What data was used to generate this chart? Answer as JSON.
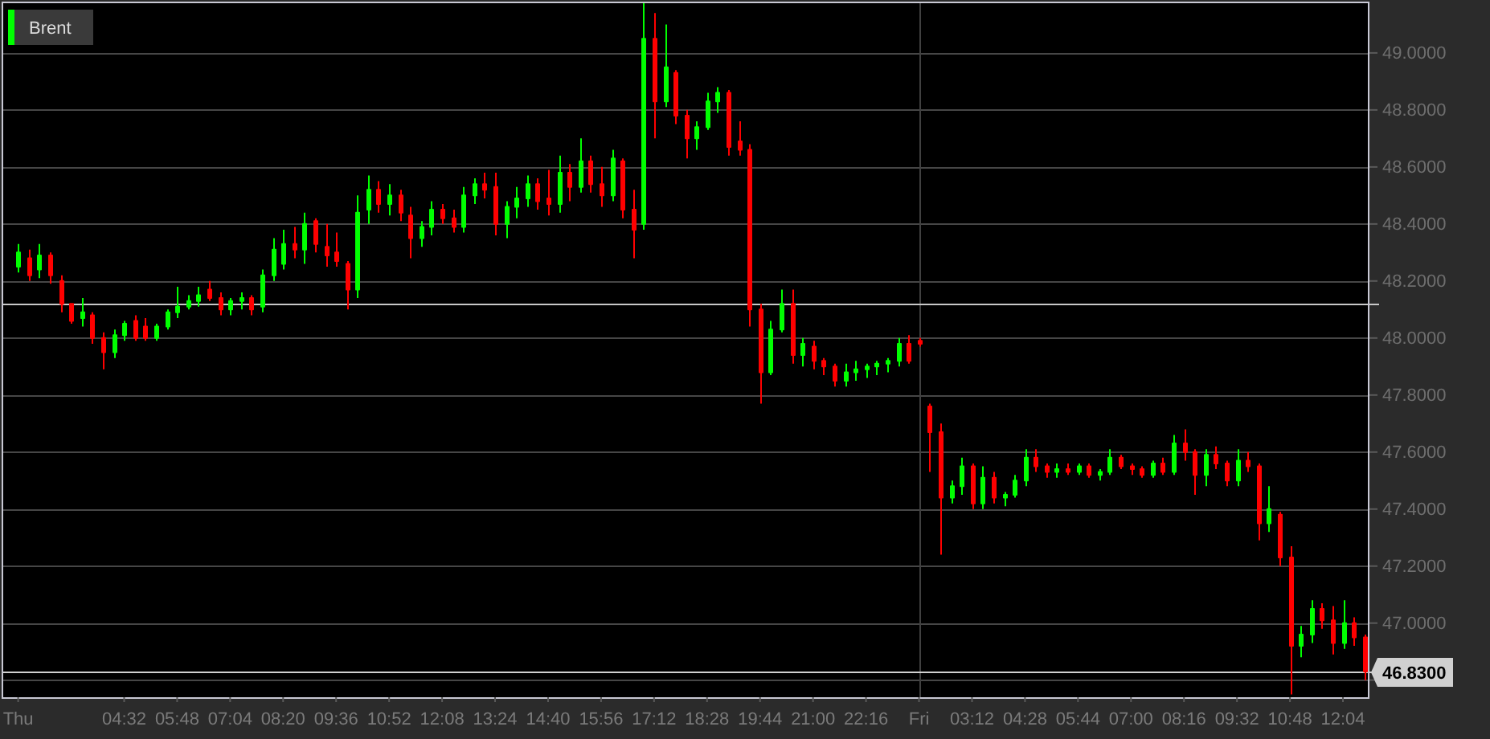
{
  "chart_data": {
    "type": "candlestick",
    "categories": [
      "Thu",
      null,
      null,
      null,
      null,
      null,
      null,
      null,
      null,
      null,
      "04:32",
      null,
      null,
      null,
      null,
      "05:48",
      null,
      null,
      null,
      null,
      "07:04",
      null,
      null,
      null,
      null,
      "08:20",
      null,
      null,
      null,
      null,
      "09:36",
      null,
      null,
      null,
      null,
      "10:52",
      null,
      null,
      null,
      null,
      "12:08",
      null,
      null,
      null,
      null,
      "13:24",
      null,
      null,
      null,
      null,
      "14:40",
      null,
      null,
      null,
      null,
      "15:56",
      null,
      null,
      null,
      null,
      "17:12",
      null,
      null,
      null,
      null,
      "18:28",
      null,
      null,
      null,
      null,
      "19:44",
      null,
      null,
      null,
      null,
      "21:00",
      null,
      null,
      null,
      null,
      "22:16",
      null,
      null,
      null,
      null,
      "Fri",
      null,
      null,
      null,
      null,
      "03:12",
      null,
      null,
      null,
      null,
      "04:28",
      null,
      null,
      null,
      null,
      "05:44",
      null,
      null,
      null,
      null,
      "07:00",
      null,
      null,
      null,
      null,
      "08:16",
      null,
      null,
      null,
      null,
      "09:32",
      null,
      null,
      null,
      null,
      "10:48",
      null,
      null,
      null,
      null,
      "12:04",
      null,
      null
    ],
    "series": [
      {
        "name": "Brent",
        "color": "#00ff00",
        "ohlc": [
          [
            48.25,
            48.33,
            48.23,
            48.3
          ],
          [
            48.28,
            48.31,
            48.2,
            48.22
          ],
          [
            48.24,
            48.33,
            48.21,
            48.29
          ],
          [
            48.29,
            48.3,
            48.19,
            48.22
          ],
          [
            48.2,
            48.22,
            48.09,
            48.12
          ],
          [
            48.12,
            48.12,
            48.05,
            48.06
          ],
          [
            48.07,
            48.14,
            48.04,
            48.09
          ],
          [
            48.08,
            48.09,
            47.98,
            48.0
          ],
          [
            48.0,
            48.02,
            47.89,
            47.95
          ],
          [
            47.95,
            48.03,
            47.93,
            48.01
          ],
          [
            48.01,
            48.06,
            47.99,
            48.05
          ],
          [
            48.06,
            48.08,
            47.99,
            48.0
          ],
          [
            48.04,
            48.07,
            47.99,
            48.0
          ],
          [
            48.0,
            48.05,
            47.99,
            48.04
          ],
          [
            48.04,
            48.1,
            48.03,
            48.09
          ],
          [
            48.09,
            48.18,
            48.07,
            48.11
          ],
          [
            48.11,
            48.15,
            48.1,
            48.13
          ],
          [
            48.13,
            48.18,
            48.11,
            48.15
          ],
          [
            48.17,
            48.2,
            48.13,
            48.14
          ],
          [
            48.14,
            48.16,
            48.08,
            48.1
          ],
          [
            48.1,
            48.14,
            48.08,
            48.13
          ],
          [
            48.13,
            48.16,
            48.1,
            48.14
          ],
          [
            48.14,
            48.15,
            48.08,
            48.1
          ],
          [
            48.11,
            48.24,
            48.09,
            48.22
          ],
          [
            48.22,
            48.35,
            48.2,
            48.31
          ],
          [
            48.26,
            48.38,
            48.24,
            48.33
          ],
          [
            48.33,
            48.39,
            48.28,
            48.31
          ],
          [
            48.31,
            48.44,
            48.26,
            48.4
          ],
          [
            48.41,
            48.42,
            48.3,
            48.33
          ],
          [
            48.32,
            48.4,
            48.25,
            48.29
          ],
          [
            48.3,
            48.37,
            48.25,
            48.27
          ],
          [
            48.26,
            48.27,
            48.1,
            48.17
          ],
          [
            48.17,
            48.5,
            48.14,
            48.44
          ],
          [
            48.45,
            48.57,
            48.4,
            48.52
          ],
          [
            48.52,
            48.55,
            48.44,
            48.47
          ],
          [
            48.47,
            48.54,
            48.43,
            48.5
          ],
          [
            48.5,
            48.52,
            48.41,
            48.44
          ],
          [
            48.43,
            48.46,
            48.28,
            48.35
          ],
          [
            48.35,
            48.41,
            48.32,
            48.39
          ],
          [
            48.39,
            48.48,
            48.36,
            48.45
          ],
          [
            48.45,
            48.47,
            48.4,
            48.42
          ],
          [
            48.42,
            48.45,
            48.37,
            48.39
          ],
          [
            48.39,
            48.53,
            48.37,
            48.5
          ],
          [
            48.5,
            48.56,
            48.47,
            48.54
          ],
          [
            48.54,
            48.58,
            48.49,
            48.52
          ],
          [
            48.53,
            48.58,
            48.36,
            48.4
          ],
          [
            48.4,
            48.48,
            48.35,
            48.46
          ],
          [
            48.46,
            48.53,
            48.42,
            48.49
          ],
          [
            48.49,
            48.57,
            48.46,
            48.54
          ],
          [
            48.54,
            48.56,
            48.45,
            48.48
          ],
          [
            48.49,
            48.59,
            48.43,
            48.47
          ],
          [
            48.47,
            48.64,
            48.44,
            48.58
          ],
          [
            48.58,
            48.61,
            48.48,
            48.53
          ],
          [
            48.53,
            48.7,
            48.51,
            48.62
          ],
          [
            48.62,
            48.64,
            48.51,
            48.54
          ],
          [
            48.54,
            48.6,
            48.46,
            48.5
          ],
          [
            48.5,
            48.66,
            48.48,
            48.63
          ],
          [
            48.62,
            48.63,
            48.42,
            48.45
          ],
          [
            48.45,
            48.52,
            48.28,
            48.38
          ],
          [
            48.4,
            49.18,
            48.38,
            49.05
          ],
          [
            49.05,
            49.14,
            48.7,
            48.83
          ],
          [
            48.83,
            49.1,
            48.81,
            48.95
          ],
          [
            48.93,
            48.94,
            48.75,
            48.78
          ],
          [
            48.78,
            48.8,
            48.63,
            48.7
          ],
          [
            48.7,
            48.76,
            48.66,
            48.74
          ],
          [
            48.74,
            48.86,
            48.73,
            48.83
          ],
          [
            48.83,
            48.88,
            48.79,
            48.86
          ],
          [
            48.86,
            48.87,
            48.64,
            48.67
          ],
          [
            48.69,
            48.76,
            48.64,
            48.66
          ],
          [
            48.66,
            48.68,
            48.04,
            48.1
          ],
          [
            48.1,
            48.12,
            47.77,
            47.88
          ],
          [
            47.88,
            48.06,
            47.87,
            48.03
          ],
          [
            48.03,
            48.17,
            48.02,
            48.12
          ],
          [
            48.12,
            48.17,
            47.91,
            47.94
          ],
          [
            47.94,
            48.0,
            47.9,
            47.98
          ],
          [
            47.97,
            47.99,
            47.89,
            47.92
          ],
          [
            47.92,
            47.93,
            47.87,
            47.9
          ],
          [
            47.9,
            47.91,
            47.83,
            47.85
          ],
          [
            47.85,
            47.91,
            47.83,
            47.88
          ],
          [
            47.88,
            47.92,
            47.85,
            47.89
          ],
          [
            47.89,
            47.91,
            47.86,
            47.9
          ],
          [
            47.9,
            47.92,
            47.87,
            47.91
          ],
          [
            47.91,
            47.93,
            47.88,
            47.92
          ],
          [
            47.92,
            48.0,
            47.9,
            47.98
          ],
          [
            47.98,
            48.01,
            47.91,
            47.92
          ],
          [
            47.99,
            48.0,
            47.97,
            47.98
          ],
          [
            47.76,
            47.77,
            47.53,
            47.67
          ],
          [
            47.67,
            47.7,
            47.24,
            47.44
          ],
          [
            47.44,
            47.5,
            47.42,
            47.48
          ],
          [
            47.48,
            47.58,
            47.45,
            47.55
          ],
          [
            47.55,
            47.56,
            47.4,
            47.42
          ],
          [
            47.42,
            47.55,
            47.4,
            47.51
          ],
          [
            47.51,
            47.53,
            47.42,
            47.44
          ],
          [
            47.44,
            47.46,
            47.41,
            47.45
          ],
          [
            47.45,
            47.52,
            47.44,
            47.5
          ],
          [
            47.5,
            47.61,
            47.48,
            47.58
          ],
          [
            47.58,
            47.61,
            47.53,
            47.55
          ],
          [
            47.55,
            47.56,
            47.51,
            47.53
          ],
          [
            47.53,
            47.56,
            47.51,
            47.54
          ],
          [
            47.54,
            47.56,
            47.52,
            47.53
          ],
          [
            47.53,
            47.56,
            47.52,
            47.55
          ],
          [
            47.55,
            47.56,
            47.51,
            47.52
          ],
          [
            47.52,
            47.54,
            47.5,
            47.53
          ],
          [
            47.53,
            47.61,
            47.52,
            47.58
          ],
          [
            47.58,
            47.59,
            47.54,
            47.55
          ],
          [
            47.55,
            47.56,
            47.52,
            47.54
          ],
          [
            47.54,
            47.55,
            47.51,
            47.52
          ],
          [
            47.52,
            47.57,
            47.51,
            47.56
          ],
          [
            47.56,
            47.58,
            47.52,
            47.53
          ],
          [
            47.53,
            47.66,
            47.52,
            47.63
          ],
          [
            47.63,
            47.68,
            47.57,
            47.6
          ],
          [
            47.6,
            47.61,
            47.45,
            47.52
          ],
          [
            47.52,
            47.61,
            47.48,
            47.59
          ],
          [
            47.59,
            47.62,
            47.54,
            47.56
          ],
          [
            47.56,
            47.57,
            47.48,
            47.5
          ],
          [
            47.5,
            47.61,
            47.48,
            47.57
          ],
          [
            47.57,
            47.6,
            47.53,
            47.55
          ],
          [
            47.55,
            47.56,
            47.29,
            47.35
          ],
          [
            47.35,
            47.48,
            47.32,
            47.4
          ],
          [
            47.38,
            47.39,
            47.2,
            47.23
          ],
          [
            47.23,
            47.27,
            46.75,
            46.92
          ],
          [
            46.92,
            46.99,
            46.88,
            46.96
          ],
          [
            46.96,
            47.08,
            46.93,
            47.05
          ],
          [
            47.05,
            47.07,
            46.98,
            47.01
          ],
          [
            47.01,
            47.06,
            46.89,
            46.93
          ],
          [
            46.93,
            47.08,
            46.91,
            47.0
          ],
          [
            47.0,
            47.02,
            46.92,
            46.95
          ],
          [
            46.95,
            46.96,
            46.8,
            46.83
          ]
        ],
        "colors": [
          "#00ff00",
          "#ff0000",
          "#00ff00",
          "#ff0000",
          "#ff0000",
          "#ff0000",
          "#00ff00",
          "#ff0000",
          "#ff0000",
          "#00ff00",
          "#00ff00",
          "#ff0000",
          "#ff0000",
          "#00ff00",
          "#00ff00",
          "#00ff00",
          "#00ff00",
          "#00ff00",
          "#ff0000",
          "#ff0000",
          "#00ff00",
          "#00ff00",
          "#ff0000",
          "#00ff00",
          "#00ff00",
          "#00ff00",
          "#ff0000",
          "#00ff00",
          "#ff0000",
          "#ff0000",
          "#ff0000",
          "#ff0000",
          "#00ff00",
          "#00ff00",
          "#ff0000",
          "#00ff00",
          "#ff0000",
          "#ff0000",
          "#00ff00",
          "#00ff00",
          "#ff0000",
          "#ff0000",
          "#00ff00",
          "#00ff00",
          "#ff0000",
          "#ff0000",
          "#00ff00",
          "#00ff00",
          "#00ff00",
          "#ff0000",
          "#ff0000",
          "#00ff00",
          "#ff0000",
          "#00ff00",
          "#ff0000",
          "#ff0000",
          "#00ff00",
          "#ff0000",
          "#ff0000",
          "#00ff00",
          "#ff0000",
          "#00ff00",
          "#ff0000",
          "#ff0000",
          "#00ff00",
          "#00ff00",
          "#00ff00",
          "#ff0000",
          "#ff0000",
          "#ff0000",
          "#ff0000",
          "#00ff00",
          "#00ff00",
          "#ff0000",
          "#00ff00",
          "#ff0000",
          "#ff0000",
          "#ff0000",
          "#00ff00",
          "#00ff00",
          "#00ff00",
          "#00ff00",
          "#00ff00",
          "#00ff00",
          "#ff0000",
          "#ff0000",
          "#ff0000",
          "#ff0000",
          "#00ff00",
          "#00ff00",
          "#ff0000",
          "#00ff00",
          "#ff0000",
          "#00ff00",
          "#00ff00",
          "#00ff00",
          "#ff0000",
          "#ff0000",
          "#00ff00",
          "#ff0000",
          "#00ff00",
          "#ff0000",
          "#00ff00",
          "#00ff00",
          "#ff0000",
          "#ff0000",
          "#ff0000",
          "#00ff00",
          "#ff0000",
          "#00ff00",
          "#ff0000",
          "#ff0000",
          "#00ff00",
          "#ff0000",
          "#ff0000",
          "#00ff00",
          "#ff0000",
          "#ff0000",
          "#00ff00",
          "#ff0000",
          "#ff0000",
          "#00ff00",
          "#00ff00",
          "#ff0000",
          "#ff0000",
          "#00ff00",
          "#ff0000",
          "#ff0000"
        ]
      }
    ],
    "ylim": [
      46.74,
      49.18
    ],
    "yticks": [
      {
        "value": 46.8,
        "label": null
      },
      {
        "value": 47,
        "label": "47.0000"
      },
      {
        "value": 47.2,
        "label": "47.2000"
      },
      {
        "value": 47.4,
        "label": "47.4000"
      },
      {
        "value": 47.6,
        "label": "47.6000"
      },
      {
        "value": 47.8,
        "label": "47.8000"
      },
      {
        "value": 48,
        "label": "48.0000"
      },
      {
        "value": 48.2,
        "label": "48.2000"
      },
      {
        "value": 48.4,
        "label": "48.4000"
      },
      {
        "value": 48.6,
        "label": "48.6000"
      },
      {
        "value": 48.8,
        "label": "48.8000"
      },
      {
        "value": 49,
        "label": "49.0000"
      }
    ],
    "grid": "y",
    "legend": "top left",
    "ref_lines": [
      {
        "axis": "x",
        "value": "Fri",
        "color": "#404040"
      },
      {
        "axis": "y",
        "value": 48.12,
        "color": "#c8c8c8"
      },
      {
        "axis": "y",
        "value": 46.83,
        "label": "46.8300",
        "color": "#d0d0d0"
      }
    ]
  }
}
